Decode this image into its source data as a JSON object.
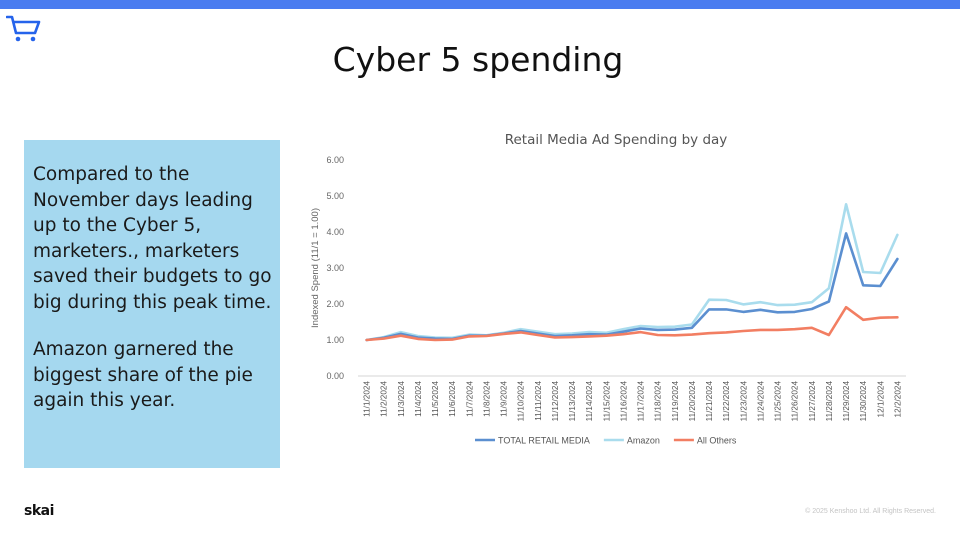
{
  "slide": {
    "title": "Cyber 5 spending",
    "paragraphs": [
      "Compared to the November days leading up to the Cyber 5, marketers., marketers saved their budgets to go big during this peak time.",
      "Amazon garnered the biggest share of the pie again this year."
    ],
    "logo_text": "skai",
    "copyright": "© 2025 Kenshoo Ltd. All Rights Reserved.",
    "icon": "shopping-cart-icon",
    "accent_color": "#4a7cf0",
    "textbox_color": "#a5d8ef"
  },
  "chart_data": {
    "type": "line",
    "title": "Retail Media Ad Spending by day",
    "xlabel": "",
    "ylabel": "Indexed Spend (11/1 = 1.00)",
    "ylim": [
      0,
      6
    ],
    "yticks": [
      "0.00",
      "1.00",
      "2.00",
      "3.00",
      "4.00",
      "5.00",
      "6.00"
    ],
    "grid": false,
    "legend_position": "bottom",
    "x": [
      "11/1/2024",
      "11/2/2024",
      "11/3/2024",
      "11/4/2024",
      "11/5/2024",
      "11/6/2024",
      "11/7/2024",
      "11/8/2024",
      "11/9/2024",
      "11/10/2024",
      "11/11/2024",
      "11/12/2024",
      "11/13/2024",
      "11/14/2024",
      "11/15/2024",
      "11/16/2024",
      "11/17/2024",
      "11/18/2024",
      "11/19/2024",
      "11/20/2024",
      "11/21/2024",
      "11/22/2024",
      "11/23/2024",
      "11/24/2024",
      "11/25/2024",
      "11/26/2024",
      "11/27/2024",
      "11/28/2024",
      "11/29/2024",
      "11/30/2024",
      "12/1/2024",
      "12/2/2024"
    ],
    "series": [
      {
        "name": "TOTAL RETAIL MEDIA",
        "color": "#5b8fd0",
        "values": [
          1.0,
          1.06,
          1.17,
          1.07,
          1.04,
          1.03,
          1.12,
          1.12,
          1.18,
          1.25,
          1.18,
          1.11,
          1.13,
          1.16,
          1.15,
          1.23,
          1.32,
          1.28,
          1.29,
          1.34,
          1.85,
          1.85,
          1.78,
          1.84,
          1.77,
          1.78,
          1.86,
          2.07,
          3.96,
          2.52,
          2.5,
          3.25
        ]
      },
      {
        "name": "Amazon",
        "color": "#a9dced",
        "values": [
          1.0,
          1.08,
          1.22,
          1.11,
          1.07,
          1.06,
          1.15,
          1.13,
          1.2,
          1.3,
          1.23,
          1.16,
          1.18,
          1.22,
          1.2,
          1.3,
          1.39,
          1.36,
          1.37,
          1.43,
          2.12,
          2.11,
          1.99,
          2.05,
          1.97,
          1.98,
          2.05,
          2.44,
          4.77,
          2.89,
          2.86,
          3.92
        ]
      },
      {
        "name": "All Others",
        "color": "#f27e62",
        "values": [
          1.0,
          1.04,
          1.12,
          1.03,
          1.0,
          1.01,
          1.1,
          1.11,
          1.17,
          1.21,
          1.14,
          1.07,
          1.08,
          1.1,
          1.12,
          1.16,
          1.22,
          1.14,
          1.13,
          1.15,
          1.19,
          1.21,
          1.25,
          1.28,
          1.28,
          1.3,
          1.34,
          1.14,
          1.91,
          1.56,
          1.62,
          1.63
        ]
      }
    ]
  }
}
